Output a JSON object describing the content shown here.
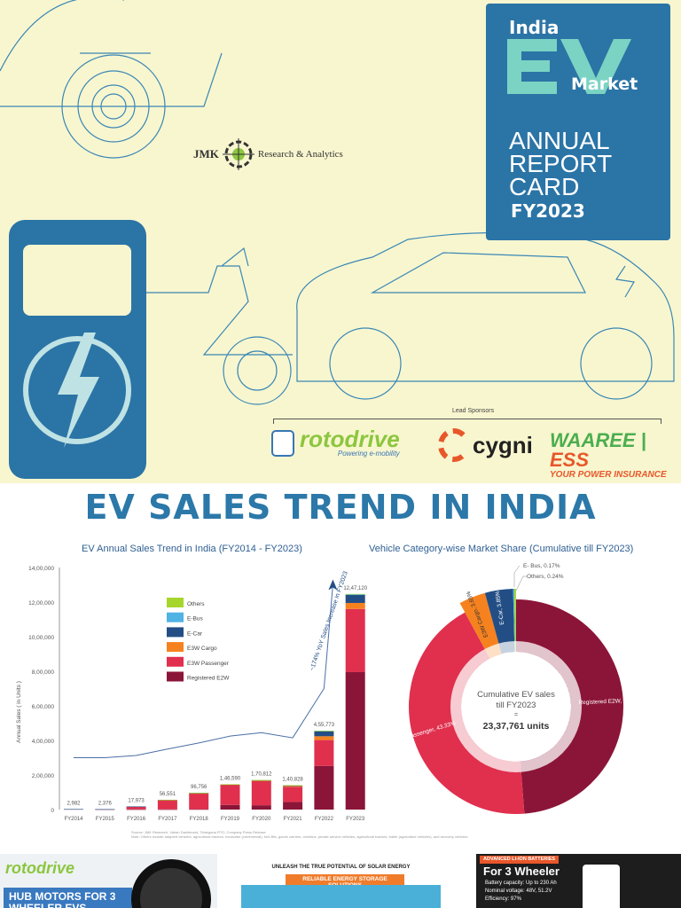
{
  "cover": {
    "india": "India",
    "ev": "EV",
    "market": "Market",
    "report": "ANNUAL REPORT CARD",
    "fy": "FY2023",
    "brand_color": "#2b74a6",
    "ev_color": "#7bd3c3"
  },
  "jmk": {
    "left": "JMK",
    "right": "Research & Analytics"
  },
  "sponsors": {
    "label": "Lead Sponsors",
    "rotodrive": {
      "name": "rotodrive",
      "tag": "Powering e-mobility"
    },
    "cygni": {
      "name": "cygni"
    },
    "waaree": {
      "name": "WAAREE",
      "suffix": "ESS",
      "tag": "YOUR POWER INSURANCE"
    }
  },
  "page_title": "EV SALES TREND IN INDIA",
  "chart_data": [
    {
      "type": "bar",
      "stacked": true,
      "title": "EV Annual Sales Trend in India (FY2014 - FY2023)",
      "ylabel": "Annual Sales ( in Units )",
      "xlabel": "",
      "ylim": [
        0,
        1400000
      ],
      "yticks": [
        "0",
        "2,00,000",
        "4,00,000",
        "6,00,000",
        "8,00,000",
        "10,00,000",
        "12,00,000",
        "14,00,000"
      ],
      "categories": [
        "FY2014",
        "FY2015",
        "FY2016",
        "FY2017",
        "FY2018",
        "FY2019",
        "FY2020",
        "FY2021",
        "FY2022",
        "FY2023"
      ],
      "totals": [
        2982,
        2376,
        17973,
        56551,
        96756,
        146590,
        170812,
        140828,
        455773,
        1247120
      ],
      "total_labels": [
        "2,982",
        "2,376",
        "17,973",
        "56,551",
        "96,756",
        "1,46,590",
        "1,70,812",
        "1,40,828",
        "4,55,773",
        "12,47,120"
      ],
      "series": [
        {
          "name": "Registered E2W",
          "color": "#8b1538",
          "values": [
            2500,
            1800,
            1500,
            1500,
            2000,
            27000,
            25000,
            44000,
            252000,
            795000
          ]
        },
        {
          "name": "E3W Passenger",
          "color": "#e0304e",
          "values": [
            0,
            0,
            16000,
            54000,
            92000,
            116000,
            140000,
            88000,
            150000,
            365000
          ]
        },
        {
          "name": "E3W Cargo",
          "color": "#f5821f",
          "values": [
            0,
            0,
            0,
            0,
            500,
            1500,
            2000,
            4000,
            22000,
            35000
          ]
        },
        {
          "name": "E-Car",
          "color": "#234e85",
          "values": [
            482,
            576,
            473,
            1000,
            1500,
            1500,
            3000,
            4000,
            30000,
            47000
          ]
        },
        {
          "name": "E-Bus",
          "color": "#4fb3e4",
          "values": [
            0,
            0,
            0,
            0,
            0,
            0,
            0,
            0,
            1000,
            2000
          ]
        },
        {
          "name": "Others",
          "color": "#a6d62b",
          "values": [
            0,
            0,
            0,
            51,
            756,
            590,
            812,
            828,
            773,
            3120
          ]
        }
      ],
      "legend_order": [
        "Others",
        "E-Bus",
        "E-Car",
        "E3W Cargo",
        "E3W Passenger",
        "Registered E2W"
      ],
      "legend": "top-center",
      "annotation": {
        "text": "~174% YoY Sales Increase in FY2023",
        "trend": [
          300000,
          300000,
          313000,
          350000,
          385000,
          425000,
          445000,
          415000,
          700000,
          1300000
        ]
      },
      "source": "Source: JMK Research, Vahan Dashboard, Telangana RTO, Company Press Release",
      "note": "Note: Others include adapted vehicles, agricultural tractors, excavator (commercial), fork lifts, goods carriers, omnibus, private service vehicles, agricultural tractors, trailer (agriculture vehicles), and recovery vehicles"
    },
    {
      "type": "pie",
      "donut": true,
      "title": "Vehicle Category-wise Market Share (Cumulative till FY2023)",
      "slices": [
        {
          "name": "Registered E2W",
          "label": "Registered E2W, 48.76%",
          "value": 48.76,
          "color": "#8b1538"
        },
        {
          "name": "E3W Passenger",
          "label": "E3W Passenger, 43.33%",
          "value": 43.33,
          "color": "#e0304e"
        },
        {
          "name": "E3W Cargo",
          "label": "E3W Cargo, 3.65%",
          "value": 3.65,
          "color": "#f5821f"
        },
        {
          "name": "E-Car",
          "label": "E-Car, 3.85%",
          "value": 3.85,
          "color": "#234e85"
        },
        {
          "name": "E-Bus",
          "label": "E- Bus, 0.17%",
          "value": 0.17,
          "color": "#4fb3e4"
        },
        {
          "name": "Others",
          "label": "Others, 0.24%",
          "value": 0.24,
          "color": "#a6d62b"
        }
      ],
      "center": {
        "line1": "Cumulative EV sales",
        "line2": "till FY2023",
        "line3": "=",
        "line4": "23,37,761 units"
      }
    }
  ],
  "ads": [
    {
      "logo": "rotodrive",
      "headline": "HUB MOTORS FOR 3 WHEELER EVS"
    },
    {
      "line1": "UNLEASH THE TRUE POTENTIAL OF SOLAR ENERGY",
      "line2": "RELIABLE ENERGY STORAGE SOLUTIONS"
    },
    {
      "tag": "ADVANCED LI-ION BATTERIES",
      "headline": "For 3 Wheeler",
      "bullets": [
        "Battery capacity: Up to 230 Ah",
        "Nominal voltage: 48V, 51.2V",
        "Efficiency: 97%"
      ]
    }
  ]
}
